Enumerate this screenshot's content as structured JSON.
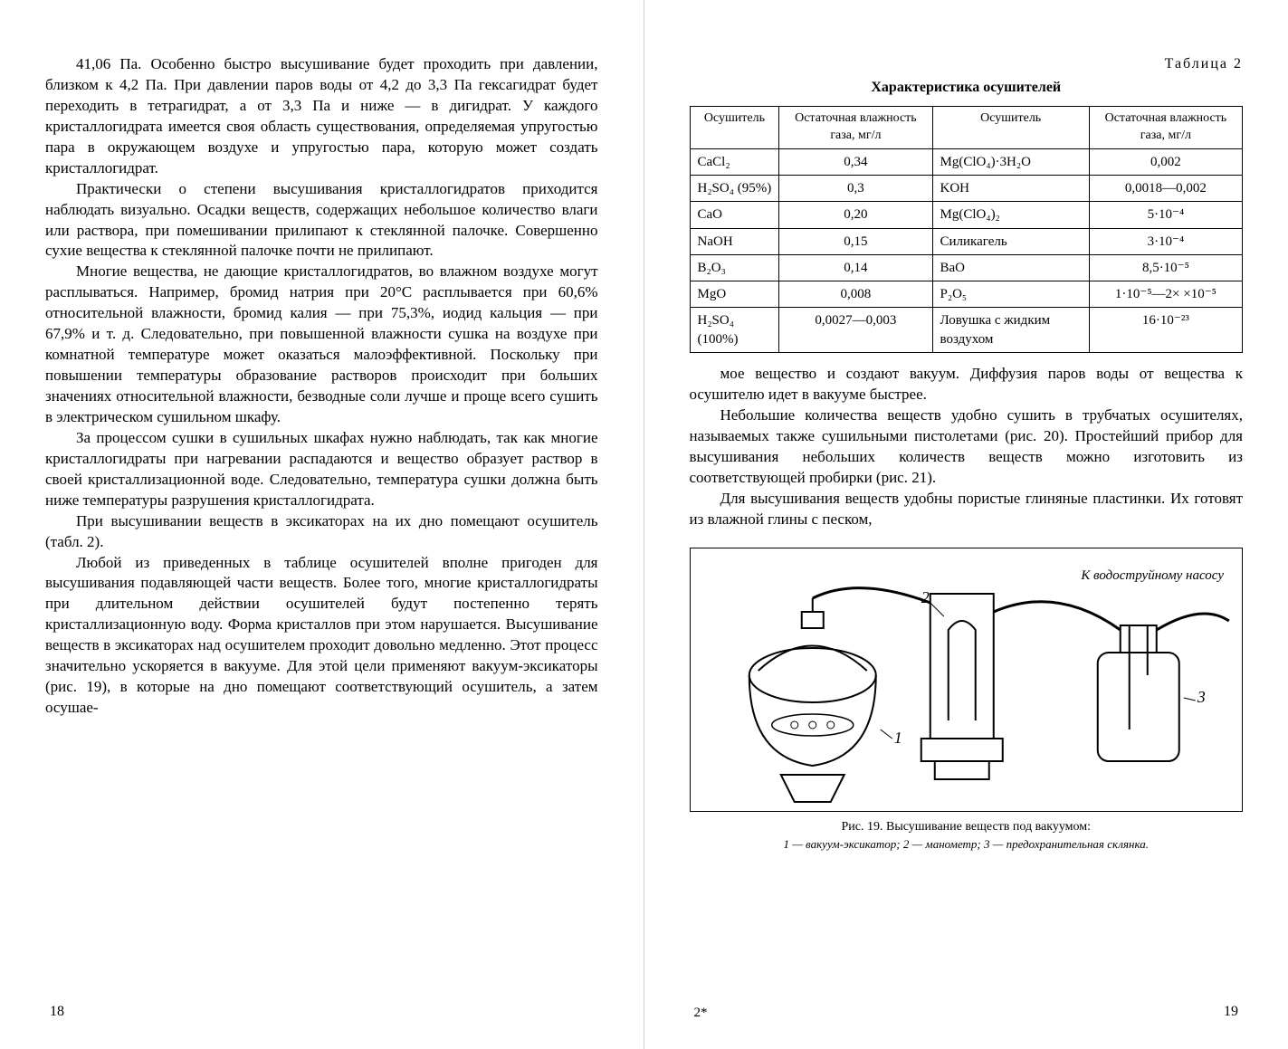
{
  "left_page": {
    "paragraphs": [
      "41,06 Па. Особенно быстро высушивание будет проходить при давлении, близком к 4,2 Па. При давлении паров воды от 4,2 до 3,3 Па гексагидрат будет переходить в тетрагидрат, а от 3,3 Па и ниже — в дигидрат. У каждого кристаллогидрата имеется своя область существования, определяемая упругостью пара в окружающем воздухе и упругостью пара, которую может создать кристаллогидрат.",
      "Практически о степени высушивания кристаллогидратов приходится наблюдать визуально. Осадки веществ, содержащих небольшое количество влаги или раствора, при помешивании прилипают к стеклянной палочке. Совершенно сухие вещества к стеклянной палочке почти не прилипают.",
      "Многие вещества, не дающие кристаллогидратов, во влажном воздухе могут расплываться. Например, бромид натрия при 20°С расплывается при 60,6% относительной влажности, бромид калия — при 75,3%, иодид кальция — при 67,9% и т. д. Следовательно, при повышенной влажности сушка на воздухе при комнатной температуре может оказаться малоэффективной. Поскольку при повышении температуры образование растворов происходит при больших значениях относительной влажности, безводные соли лучше и проще всего сушить в электрическом сушильном шкафу.",
      "За процессом сушки в сушильных шкафах нужно наблюдать, так как многие кристаллогидраты при нагревании распадаются и вещество образует раствор в своей кристаллизационной воде. Следовательно, температура сушки должна быть ниже температуры разрушения кристаллогидрата.",
      "При высушивании веществ в эксикаторах на их дно помещают осушитель (табл. 2).",
      "Любой из приведенных в таблице осушителей вполне пригоден для высушивания подавляющей части веществ. Более того, многие кристаллогидраты при длительном действии осушителей будут постепенно терять кристаллизационную воду. Форма кристаллов при этом нарушается. Высушивание веществ в эксикаторах над осушителем проходит довольно медленно. Этот процесс значительно ускоряется в вакууме. Для этой цели применяют вакуум-эксикаторы (рис. 19), в которые на дно помещают соответствующий осушитель, а затем осушае-"
    ],
    "page_number": "18"
  },
  "right_page": {
    "table_label": "Таблица 2",
    "table_caption": "Характеристика осушителей",
    "table": {
      "headers": [
        "Осушитель",
        "Остаточная влажность газа, мг/л",
        "Осушитель",
        "Остаточная влажность газа, мг/л"
      ],
      "rows": [
        [
          "CaCl₂",
          "0,34",
          "Mg(ClO₄)·3H₂O",
          "0,002"
        ],
        [
          "H₂SO₄ (95%)",
          "0,3",
          "KOH",
          "0,0018—0,002"
        ],
        [
          "CaO",
          "0,20",
          "Mg(ClO₄)₂",
          "5·10⁻⁴"
        ],
        [
          "NaOH",
          "0,15",
          "Силикагель",
          "3·10⁻⁴"
        ],
        [
          "B₂O₃",
          "0,14",
          "BaO",
          "8,5·10⁻⁵"
        ],
        [
          "MgO",
          "0,008",
          "P₂O₅",
          "1·10⁻⁵—2×\n×10⁻⁵"
        ],
        [
          "H₂SO₄ (100%)",
          "0,0027—0,003",
          "Ловушка с жидким воздухом",
          "16·10⁻²³"
        ]
      ]
    },
    "paragraphs": [
      "мое вещество и создают вакуум. Диффузия паров воды от вещества к осушителю идет в вакууме быстрее.",
      "Небольшие количества веществ удобно сушить в трубчатых осушителях, называемых также сушильными пистолетами (рис. 20). Простейший прибор для высушивания небольших количеств веществ можно изготовить из соответствующей пробирки (рис. 21).",
      "Для высушивания веществ удобны пористые глиняные пластинки. Их готовят из влажной глины с песком,"
    ],
    "figure": {
      "annot_main": "К водоструйному насосу",
      "labels": {
        "l1": "1",
        "l2": "2",
        "l3": "3"
      },
      "caption": "Рис. 19. Высушивание веществ под вакуумом:",
      "sub": "1 — вакуум-эксикатор; 2 — манометр; 3 — предохранительная склянка."
    },
    "page_number": "19",
    "sig": "2*"
  },
  "colors": {
    "text": "#000000",
    "background": "#ffffff",
    "border": "#000000"
  }
}
